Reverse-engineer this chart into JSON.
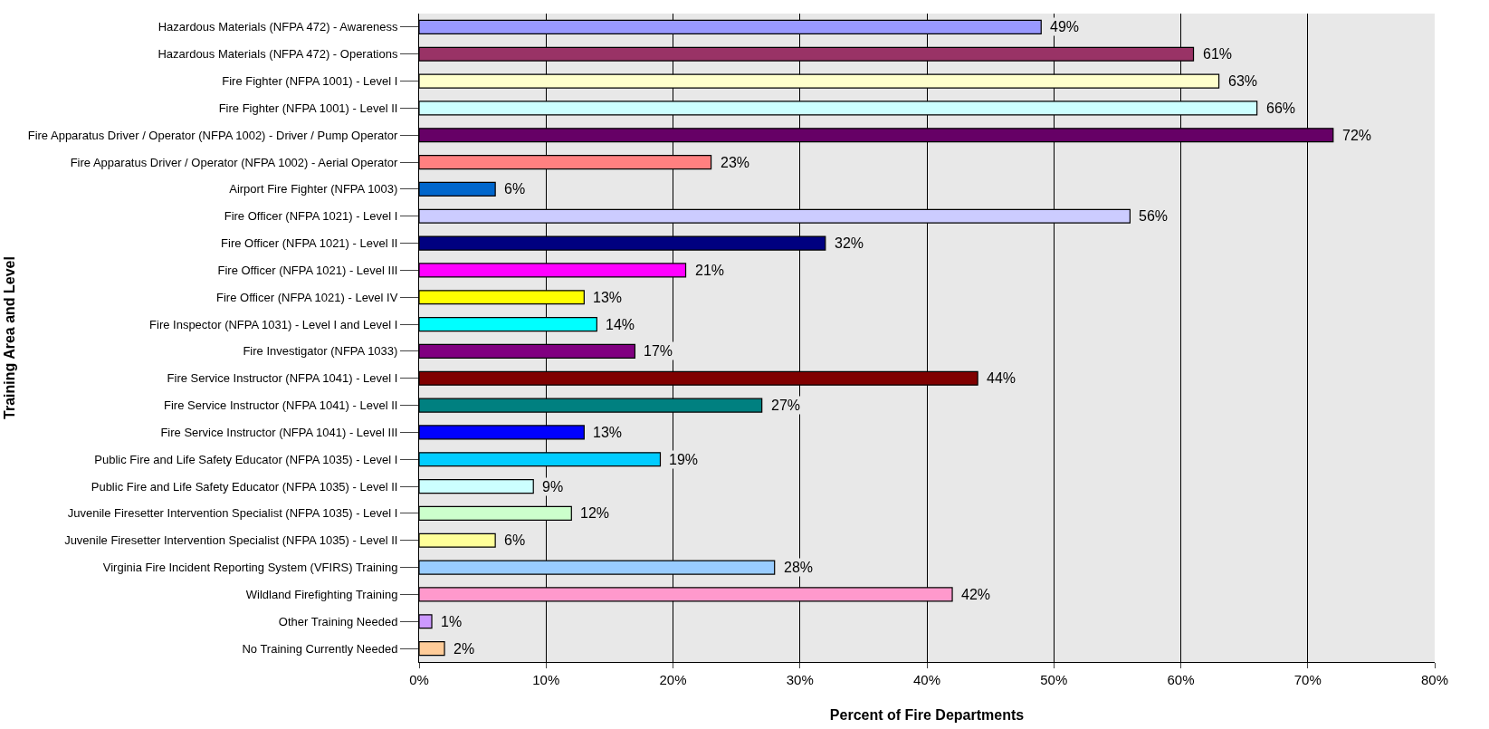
{
  "chart_data": {
    "type": "bar",
    "orientation": "horizontal",
    "xlabel": "Percent of Fire Departments",
    "ylabel": "Training Area and Level",
    "categories": [
      "Hazardous Materials (NFPA 472) - Awareness",
      "Hazardous Materials (NFPA 472) - Operations",
      "Fire Fighter (NFPA 1001) - Level I",
      "Fire Fighter (NFPA 1001) - Level II",
      "Fire Apparatus Driver / Operator (NFPA 1002) - Driver / Pump Operator",
      "Fire Apparatus Driver / Operator (NFPA 1002) - Aerial Operator",
      "Airport Fire Fighter (NFPA 1003)",
      "Fire Officer (NFPA 1021) - Level I",
      "Fire Officer (NFPA 1021) - Level II",
      "Fire Officer (NFPA 1021) - Level III",
      "Fire Officer (NFPA 1021) - Level IV",
      "Fire Inspector (NFPA 1031) - Level I and Level I",
      "Fire Investigator (NFPA 1033)",
      "Fire Service Instructor (NFPA 1041) - Level I",
      "Fire Service Instructor (NFPA 1041) - Level II",
      "Fire Service Instructor (NFPA 1041) - Level III",
      "Public Fire and Life Safety Educator (NFPA 1035) - Level I",
      "Public Fire and Life Safety Educator (NFPA 1035) - Level II",
      "Juvenile Firesetter Intervention Specialist (NFPA 1035) - Level I",
      "Juvenile Firesetter Intervention Specialist (NFPA 1035) - Level II",
      "Virginia Fire Incident Reporting System (VFIRS) Training",
      "Wildland Firefighting Training",
      "Other Training Needed",
      "No Training Currently Needed"
    ],
    "values": [
      49,
      61,
      63,
      66,
      72,
      23,
      6,
      56,
      32,
      21,
      13,
      14,
      17,
      44,
      27,
      13,
      19,
      9,
      12,
      6,
      28,
      42,
      1,
      2
    ],
    "value_labels": [
      "49%",
      "61%",
      "63%",
      "66%",
      "72%",
      "23%",
      "6%",
      "56%",
      "32%",
      "21%",
      "13%",
      "14%",
      "17%",
      "44%",
      "27%",
      "13%",
      "19%",
      "9%",
      "12%",
      "6%",
      "28%",
      "42%",
      "1%",
      "2%"
    ],
    "colors": [
      "#9999ff",
      "#993366",
      "#ffffcc",
      "#ccffff",
      "#660066",
      "#ff8080",
      "#0066cc",
      "#ccccff",
      "#000080",
      "#ff00ff",
      "#ffff00",
      "#00ffff",
      "#800080",
      "#800000",
      "#008080",
      "#0000ff",
      "#00ccff",
      "#ccffff",
      "#ccffcc",
      "#ffff99",
      "#99ccff",
      "#ff99cc",
      "#cc99ff",
      "#ffcc99"
    ],
    "xlim": [
      0,
      80
    ],
    "xticks": [
      {
        "value": 0,
        "label": "0%"
      },
      {
        "value": 10,
        "label": "10%"
      },
      {
        "value": 20,
        "label": "20%"
      },
      {
        "value": 30,
        "label": "30%"
      },
      {
        "value": 40,
        "label": "40%"
      },
      {
        "value": 50,
        "label": "50%"
      },
      {
        "value": 60,
        "label": "60%"
      },
      {
        "value": 70,
        "label": "70%"
      },
      {
        "value": 80,
        "label": "80%"
      }
    ],
    "grid": "x"
  }
}
